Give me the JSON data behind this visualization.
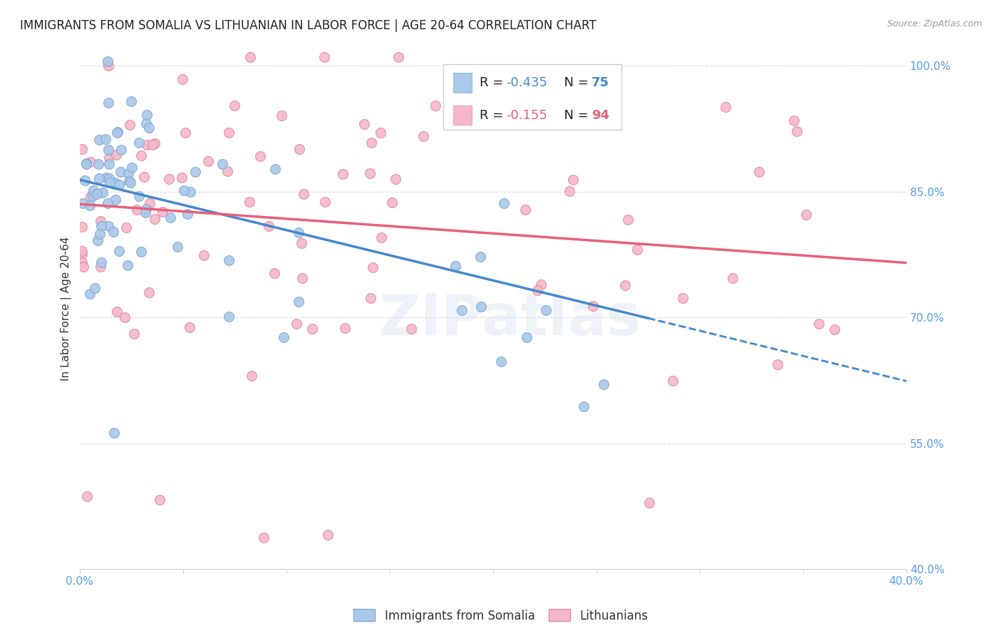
{
  "title": "IMMIGRANTS FROM SOMALIA VS LITHUANIAN IN LABOR FORCE | AGE 20-64 CORRELATION CHART",
  "source": "Source: ZipAtlas.com",
  "ylabel": "In Labor Force | Age 20-64",
  "xlim": [
    0.0,
    0.4
  ],
  "ylim": [
    0.4,
    1.02
  ],
  "yticks": [
    0.4,
    0.55,
    0.7,
    0.85,
    1.0
  ],
  "yticklabels": [
    "40.0%",
    "55.0%",
    "70.0%",
    "85.0%",
    "100.0%"
  ],
  "somalia_color": "#aac8e8",
  "somalia_edge": "#80aad4",
  "lithuanian_color": "#f4b8c8",
  "lithuanian_edge": "#e888a8",
  "trend_somalia_color": "#4488cc",
  "trend_lithuanian_color": "#e8607a",
  "r_somalia": -0.435,
  "n_somalia": 75,
  "r_lithuanian": -0.155,
  "n_lithuanian": 94,
  "trend_som_x0": 0.0,
  "trend_som_y0": 0.864,
  "trend_som_x1": 0.4,
  "trend_som_y1": 0.624,
  "trend_som_solid_end": 0.275,
  "trend_lit_x0": 0.0,
  "trend_lit_y0": 0.835,
  "trend_lit_x1": 0.4,
  "trend_lit_y1": 0.765,
  "watermark": "ZIPatlas",
  "background_color": "#ffffff",
  "grid_color": "#dddddd",
  "axis_color": "#5599ee",
  "title_fontsize": 12,
  "axis_label_fontsize": 11,
  "tick_fontsize": 11
}
